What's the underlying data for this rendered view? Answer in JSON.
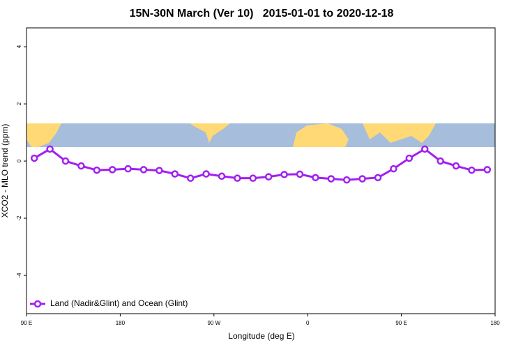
{
  "chart_data": {
    "type": "line",
    "title": "15N-30N March (Ver 10)   2015-01-01 to 2020-12-18",
    "x_label": "Longitude (deg E)",
    "y_label": "XCO2 - MLO trend (ppm)",
    "x": [
      97.5,
      112.5,
      127.5,
      142.5,
      157.5,
      172.5,
      187.5,
      202.5,
      217.5,
      232.5,
      247.5,
      262.5,
      277.5,
      292.5,
      307.5,
      322.5,
      337.5,
      352.5,
      367.5,
      382.5,
      397.5,
      412.5,
      427.5,
      442.5,
      457.5,
      472.5,
      487.5,
      502.5,
      517.5,
      532.5
    ],
    "series": [
      {
        "name": "Land (Nadir&Glint) and Ocean (Glint)",
        "color": "#a020f0",
        "values": [
          0.1,
          0.42,
          0.0,
          -0.17,
          -0.32,
          -0.3,
          -0.27,
          -0.3,
          -0.33,
          -0.45,
          -0.6,
          -0.45,
          -0.53,
          -0.6,
          -0.6,
          -0.55,
          -0.47,
          -0.46,
          -0.58,
          -0.62,
          -0.66,
          -0.62,
          -0.58,
          -0.27,
          0.1,
          0.42,
          0.0,
          -0.17,
          -0.32,
          -0.3
        ]
      }
    ],
    "xlim": [
      90,
      540
    ],
    "xticks": [
      {
        "value": 90,
        "label": "90 E"
      },
      {
        "value": 180,
        "label": "180"
      },
      {
        "value": 270,
        "label": "90 W"
      },
      {
        "value": 360,
        "label": "0"
      },
      {
        "value": 450,
        "label": "90 E"
      },
      {
        "value": 540,
        "label": "180"
      }
    ],
    "ylim": [
      -5.34,
      4.66
    ],
    "yticks": [
      -4,
      -2,
      0,
      2,
      4
    ],
    "legend": "bottom-left"
  }
}
